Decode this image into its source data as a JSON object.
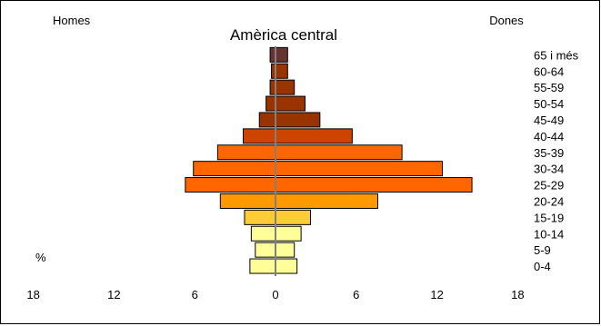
{
  "chart_data": {
    "type": "bar",
    "subtype": "population-pyramid",
    "title": "Amèrica central",
    "left_label": "Homes",
    "right_label": "Dones",
    "unit_label": "%",
    "categories": [
      "0-4",
      "5-9",
      "10-14",
      "15-19",
      "20-24",
      "25-29",
      "30-34",
      "35-39",
      "40-44",
      "45-49",
      "50-54",
      "55-59",
      "60-64",
      "65 i més"
    ],
    "series": [
      {
        "name": "Homes",
        "side": "left",
        "values": [
          1.9,
          1.5,
          1.8,
          2.3,
          4.1,
          6.7,
          6.1,
          4.3,
          2.4,
          1.2,
          0.7,
          0.4,
          0.3,
          0.4
        ]
      },
      {
        "name": "Dones",
        "side": "right",
        "values": [
          1.6,
          1.4,
          1.9,
          2.6,
          7.6,
          14.6,
          12.4,
          9.4,
          5.7,
          3.3,
          2.2,
          1.4,
          0.9,
          0.9
        ]
      }
    ],
    "bar_colors": [
      "#ffff99",
      "#ffff99",
      "#ffff99",
      "#ffcc33",
      "#ff9900",
      "#ff6600",
      "#ff6600",
      "#ff6600",
      "#cc4400",
      "#993300",
      "#993300",
      "#993300",
      "#993300",
      "#663333"
    ],
    "center_line_color": "#808080",
    "x_ticks": [
      18,
      12,
      6,
      0,
      6,
      12,
      18
    ],
    "xlim": [
      -18,
      18
    ],
    "grid": false
  }
}
